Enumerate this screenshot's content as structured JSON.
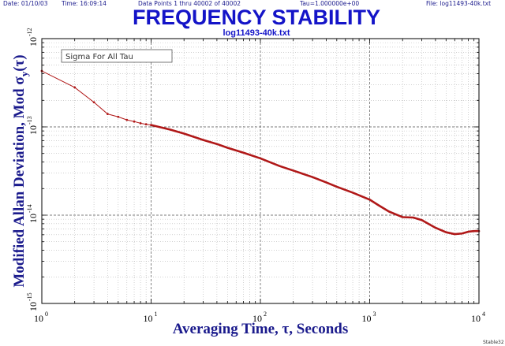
{
  "header": {
    "date": "Date: 01/10/03",
    "time": "Time: 16:09:14",
    "points": "Data Points 1 thru 40002 of 40002",
    "tau": "Tau=1.000000e+00",
    "file": "File: log11493-40k.txt"
  },
  "footer": {
    "tag": "Stable32"
  },
  "colors": {
    "title": "#1414c8",
    "axis_label": "#1a1a8c",
    "curve": "#b01818",
    "grid": "#b4b4b4",
    "major_grid": "#505050"
  },
  "chart_data": {
    "type": "line",
    "title": "FREQUENCY STABILITY",
    "subtitle": "log11493-40k.txt",
    "xlabel": "Averaging Time, τ, Seconds",
    "ylabel": "Modified Allan Deviation, Mod σy(τ)",
    "ylabel_parts": {
      "main": "Modified Allan Deviation, Mod σ",
      "sub": "y",
      "tail": "(τ)"
    },
    "legend": "Sigma For All Tau",
    "legend_position": "top-left",
    "xscale": "log",
    "yscale": "log",
    "xlim": [
      1,
      10000
    ],
    "ylim": [
      1e-15,
      1e-12
    ],
    "grid": true,
    "xticks": [
      {
        "value": 1,
        "base": "10",
        "exp": "0"
      },
      {
        "value": 10,
        "base": "10",
        "exp": "1"
      },
      {
        "value": 100,
        "base": "10",
        "exp": "2"
      },
      {
        "value": 1000,
        "base": "10",
        "exp": "3"
      },
      {
        "value": 10000,
        "base": "10",
        "exp": "4"
      }
    ],
    "yticks": [
      {
        "value": 1e-12,
        "base": "10",
        "exp": "-12"
      },
      {
        "value": 1e-13,
        "base": "10",
        "exp": "-13"
      },
      {
        "value": 1e-14,
        "base": "10",
        "exp": "-14"
      },
      {
        "value": 1e-15,
        "base": "10",
        "exp": "-15"
      }
    ],
    "series": [
      {
        "x": [
          1,
          2,
          3,
          4,
          5,
          6,
          7,
          8,
          9,
          10,
          15,
          20,
          30,
          40,
          50,
          70,
          100,
          150,
          200,
          300,
          400,
          500,
          700,
          1000,
          1200,
          1500,
          2000,
          2500,
          3000,
          3500,
          4000,
          5000,
          6000,
          7000,
          8000,
          9000,
          10000
        ],
        "y": [
          4.3e-13,
          2.8e-13,
          1.9e-13,
          1.4e-13,
          1.3e-13,
          1.2e-13,
          1.15e-13,
          1.1e-13,
          1.07e-13,
          1.05e-13,
          9.3e-14,
          8.4e-14,
          7.1e-14,
          6.4e-14,
          5.8e-14,
          5.1e-14,
          4.4e-14,
          3.6e-14,
          3.2e-14,
          2.7e-14,
          2.35e-14,
          2.1e-14,
          1.8e-14,
          1.5e-14,
          1.3e-14,
          1.1e-14,
          9.5e-15,
          9.4e-15,
          8.8e-15,
          7.9e-15,
          7.2e-15,
          6.4e-15,
          6.1e-15,
          6.2e-15,
          6.5e-15,
          6.6e-15,
          6.6e-15
        ]
      }
    ]
  }
}
